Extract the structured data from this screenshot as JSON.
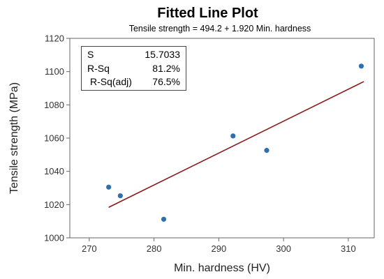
{
  "chart_data": {
    "type": "scatter",
    "title": "Fitted Line Plot",
    "subtitle": "Tensile strength = 494.2 + 1.920 Min. hardness",
    "xlabel": "Min. hardness (HV)",
    "ylabel": "Tensile strength (MPa)",
    "xlim": [
      267,
      314
    ],
    "ylim": [
      1000,
      1120
    ],
    "xticks": [
      270,
      280,
      290,
      300,
      310
    ],
    "yticks": [
      1000,
      1020,
      1040,
      1060,
      1080,
      1100,
      1120
    ],
    "grid": false,
    "points": [
      {
        "x": 273.0,
        "y": 1030.5
      },
      {
        "x": 274.8,
        "y": 1025.3
      },
      {
        "x": 281.5,
        "y": 1011.2
      },
      {
        "x": 292.2,
        "y": 1061.3
      },
      {
        "x": 297.4,
        "y": 1052.6
      },
      {
        "x": 312.0,
        "y": 1103.3
      }
    ],
    "fit": {
      "intercept": 494.2,
      "slope": 1.92,
      "x_start": 273.0,
      "x_end": 312.4
    },
    "colors": {
      "points": "#2e6fae",
      "fit_line": "#8b1a1a"
    },
    "stats": [
      {
        "label": "S",
        "value": "15.7033"
      },
      {
        "label": "R-Sq",
        "value": "81.2%"
      },
      {
        "label": "R-Sq(adj)",
        "value": "76.5%"
      }
    ]
  }
}
